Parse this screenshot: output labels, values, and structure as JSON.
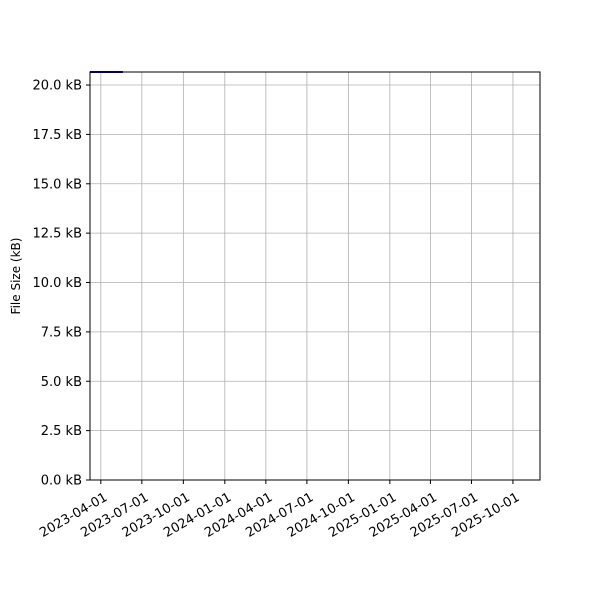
{
  "chart_data": {
    "type": "line",
    "title": "",
    "xlabel": "",
    "ylabel": "File Size (kB)",
    "grid": true,
    "xlim": [
      "2023-03-08",
      "2025-11-30"
    ],
    "ylim": [
      0,
      20.66
    ],
    "x_ticks": [
      "2023-04-01",
      "2023-07-01",
      "2023-10-01",
      "2024-01-01",
      "2024-04-01",
      "2024-07-01",
      "2024-10-01",
      "2025-01-01",
      "2025-04-01",
      "2025-07-01",
      "2025-10-01"
    ],
    "y_ticks": [
      0,
      2.5,
      5,
      7.5,
      10,
      12.5,
      15,
      17.5,
      20
    ],
    "y_tick_labels": [
      "0.0 kB",
      "2.5 kB",
      "5.0 kB",
      "7.5 kB",
      "10.0 kB",
      "12.5 kB",
      "15.0 kB",
      "17.5 kB",
      "20.0 kB"
    ],
    "series": [
      {
        "color": "#0000cc",
        "x": [
          "2023-03-08",
          "2023-05-20"
        ],
        "y": [
          20.66,
          20.66
        ]
      }
    ]
  }
}
